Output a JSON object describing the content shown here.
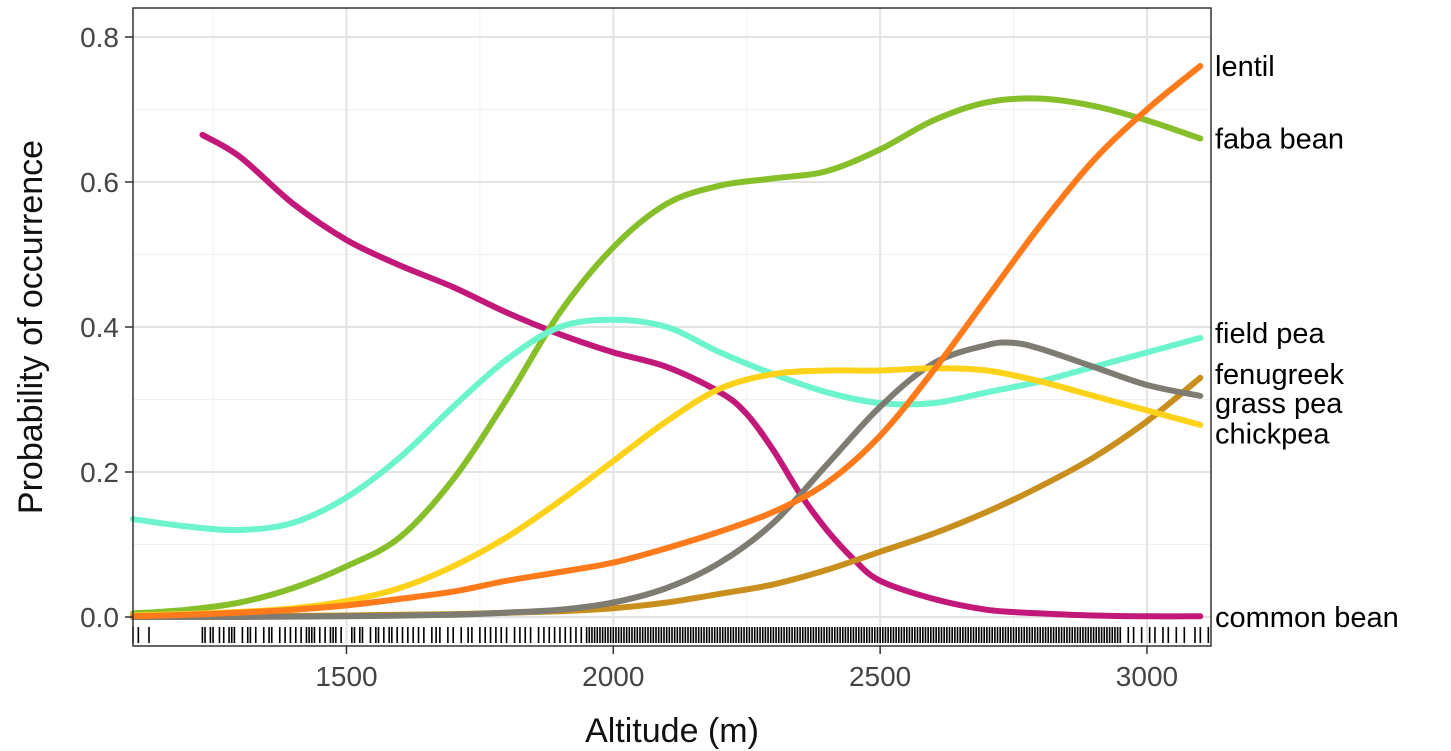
{
  "chart_data": {
    "type": "line",
    "title": "",
    "xlabel": "Altitude (m)",
    "ylabel": "Probability of occurrence",
    "xlim": [
      1100,
      3120
    ],
    "ylim": [
      -0.04,
      0.84
    ],
    "xticks": [
      1500,
      2000,
      2500,
      3000
    ],
    "xtick_labels": [
      "1500",
      "2000",
      "2500",
      "3000"
    ],
    "yticks": [
      0.0,
      0.2,
      0.4,
      0.6,
      0.8
    ],
    "ytick_labels": [
      "0.0",
      "0.2",
      "0.4",
      "0.6",
      "0.8"
    ],
    "grid": true,
    "legend": "direct labels at right end of each line",
    "series": [
      {
        "name": "common bean",
        "color": "#c2187a",
        "x": [
          1230,
          1300,
          1400,
          1500,
          1600,
          1700,
          1800,
          1900,
          2000,
          2100,
          2200,
          2250,
          2300,
          2350,
          2400,
          2450,
          2500,
          2600,
          2700,
          2800,
          2900,
          3000,
          3100
        ],
        "y": [
          0.665,
          0.635,
          0.57,
          0.52,
          0.485,
          0.455,
          0.42,
          0.39,
          0.365,
          0.345,
          0.31,
          0.28,
          0.23,
          0.17,
          0.12,
          0.08,
          0.05,
          0.025,
          0.01,
          0.005,
          0.002,
          0.001,
          0.001
        ]
      },
      {
        "name": "faba bean",
        "color": "#86bf2a",
        "x": [
          1100,
          1200,
          1300,
          1400,
          1500,
          1600,
          1700,
          1800,
          1900,
          2000,
          2100,
          2200,
          2300,
          2400,
          2500,
          2600,
          2700,
          2800,
          2900,
          3000,
          3100
        ],
        "y": [
          0.005,
          0.01,
          0.02,
          0.04,
          0.07,
          0.11,
          0.19,
          0.3,
          0.42,
          0.51,
          0.57,
          0.595,
          0.605,
          0.615,
          0.645,
          0.685,
          0.71,
          0.715,
          0.705,
          0.685,
          0.66
        ]
      },
      {
        "name": "field pea",
        "color": "#6cf5cc",
        "x": [
          1100,
          1200,
          1300,
          1400,
          1500,
          1600,
          1700,
          1800,
          1900,
          2000,
          2100,
          2200,
          2300,
          2400,
          2500,
          2600,
          2700,
          2800,
          2900,
          3000,
          3100
        ],
        "y": [
          0.135,
          0.125,
          0.12,
          0.13,
          0.165,
          0.22,
          0.29,
          0.355,
          0.4,
          0.41,
          0.4,
          0.365,
          0.335,
          0.31,
          0.295,
          0.295,
          0.31,
          0.325,
          0.345,
          0.365,
          0.385
        ]
      },
      {
        "name": "fenugreek",
        "color": "#c88f1e",
        "x": [
          1100,
          1300,
          1500,
          1700,
          1900,
          2000,
          2100,
          2200,
          2300,
          2400,
          2500,
          2600,
          2700,
          2800,
          2900,
          3000,
          3100
        ],
        "y": [
          0.0,
          0.001,
          0.002,
          0.004,
          0.008,
          0.012,
          0.02,
          0.032,
          0.045,
          0.065,
          0.09,
          0.115,
          0.145,
          0.18,
          0.22,
          0.27,
          0.33
        ]
      },
      {
        "name": "grass pea",
        "color": "#7e7b70",
        "x": [
          1100,
          1300,
          1500,
          1700,
          1800,
          1900,
          2000,
          2100,
          2200,
          2300,
          2400,
          2500,
          2600,
          2700,
          2750,
          2800,
          2900,
          3000,
          3100
        ],
        "y": [
          0.0,
          0.0,
          0.001,
          0.003,
          0.006,
          0.01,
          0.02,
          0.04,
          0.075,
          0.13,
          0.21,
          0.29,
          0.35,
          0.375,
          0.378,
          0.37,
          0.345,
          0.32,
          0.305
        ]
      },
      {
        "name": "chickpea",
        "color": "#ffd21a",
        "x": [
          1100,
          1200,
          1300,
          1400,
          1500,
          1600,
          1700,
          1800,
          1900,
          2000,
          2100,
          2200,
          2300,
          2400,
          2500,
          2600,
          2700,
          2800,
          2900,
          3000,
          3100
        ],
        "y": [
          0.002,
          0.004,
          0.007,
          0.012,
          0.022,
          0.04,
          0.07,
          0.11,
          0.16,
          0.215,
          0.27,
          0.315,
          0.335,
          0.34,
          0.34,
          0.343,
          0.34,
          0.325,
          0.305,
          0.285,
          0.265
        ]
      },
      {
        "name": "lentil",
        "color": "#ff7a1a",
        "x": [
          1100,
          1200,
          1300,
          1400,
          1500,
          1600,
          1700,
          1800,
          1900,
          2000,
          2100,
          2200,
          2300,
          2400,
          2500,
          2600,
          2700,
          2800,
          2900,
          3000,
          3100
        ],
        "y": [
          0.001,
          0.003,
          0.006,
          0.01,
          0.016,
          0.025,
          0.035,
          0.05,
          0.062,
          0.075,
          0.095,
          0.118,
          0.145,
          0.185,
          0.25,
          0.34,
          0.44,
          0.54,
          0.63,
          0.7,
          0.76
        ]
      }
    ],
    "label_positions_y": [
      0.0,
      0.66,
      0.392,
      0.335,
      0.295,
      0.253,
      0.76
    ],
    "rug": {
      "color": "#000000",
      "dense_range": [
        1950,
        2950
      ],
      "dense_step": 5,
      "sparse_x": [
        1100,
        1110,
        1130,
        1230,
        1235,
        1245,
        1250,
        1262,
        1270,
        1280,
        1285,
        1290,
        1305,
        1315,
        1320,
        1330,
        1345,
        1355,
        1360,
        1375,
        1385,
        1395,
        1405,
        1415,
        1425,
        1430,
        1435,
        1440,
        1450,
        1460,
        1470,
        1475,
        1480,
        1490,
        1510,
        1515,
        1525,
        1530,
        1545,
        1555,
        1560,
        1570,
        1580,
        1585,
        1595,
        1605,
        1615,
        1625,
        1635,
        1645,
        1660,
        1668,
        1675,
        1690,
        1700,
        1715,
        1728,
        1735,
        1750,
        1760,
        1770,
        1780,
        1790,
        1800,
        1815,
        1825,
        1835,
        1845,
        1860,
        1870,
        1880,
        1890,
        1900,
        1910,
        1920,
        1930,
        1940,
        2965,
        2975,
        2990,
        3005,
        3015,
        3030,
        3040,
        3055,
        3070,
        3090,
        3100,
        3115
      ]
    }
  }
}
